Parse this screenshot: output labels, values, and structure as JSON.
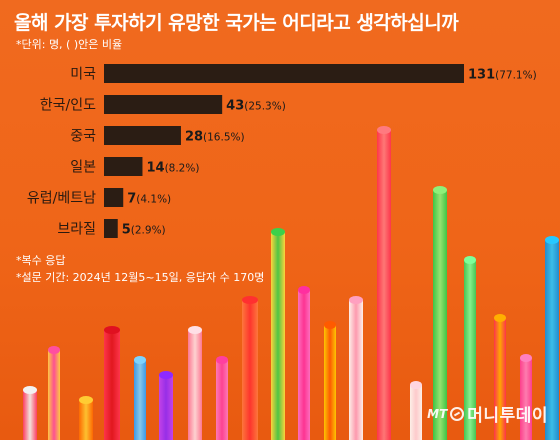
{
  "header": {
    "title": "올해 가장 투자하기 유망한 국가는 어디라고 생각하십니까",
    "subtitle": "*단위: 명, ( )안은 비율"
  },
  "notes": [
    "*복수 응답",
    "*설문 기간: 2024년 12월5~15일, 응답자 수 170명"
  ],
  "logo": {
    "mt": "MT",
    "name": "머니투데이"
  },
  "colors": {
    "bar": "#2b1d14",
    "text": "#1a1a1a",
    "background": "#ef6518"
  },
  "chart_data": {
    "type": "bar",
    "orientation": "horizontal",
    "categories": [
      "미국",
      "한국/인도",
      "중국",
      "일본",
      "유럽/베트남",
      "브라질"
    ],
    "values": [
      131,
      43,
      28,
      14,
      7,
      5
    ],
    "percent_labels": [
      "(77.1%)",
      "(25.3%)",
      "(16.5%)",
      "(8.2%)",
      "(4.1%)",
      "(2.9%)"
    ],
    "xlim": [
      0,
      131
    ],
    "grid": false,
    "legend": "none"
  }
}
